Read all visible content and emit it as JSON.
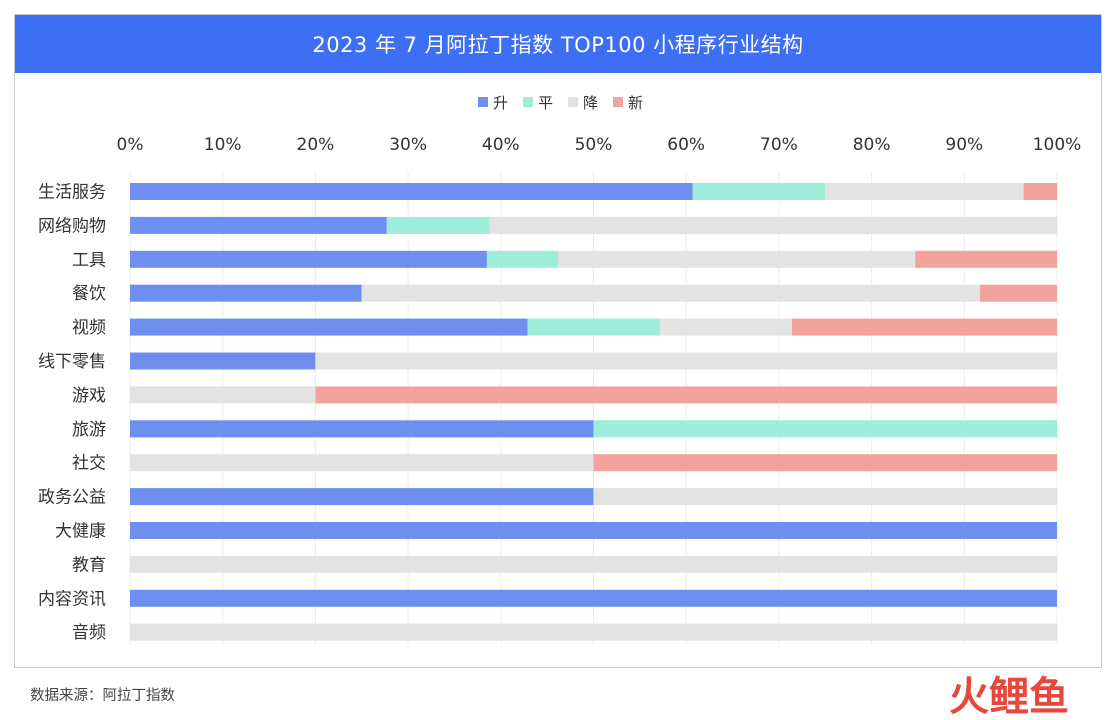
{
  "chart_data": {
    "type": "bar",
    "orientation": "horizontal",
    "stacked": true,
    "title": "2023 年 7 月阿拉丁指数 TOP100 小程序行业结构",
    "xlabel": "",
    "ylabel": "",
    "xlim": [
      0,
      100
    ],
    "x_ticks": [
      "0%",
      "10%",
      "20%",
      "30%",
      "40%",
      "50%",
      "60%",
      "70%",
      "80%",
      "90%",
      "100%"
    ],
    "legend_position": "top-center",
    "grid": true,
    "categories": [
      "生活服务",
      "网络购物",
      "工具",
      "餐饮",
      "视频",
      "线下零售",
      "游戏",
      "旅游",
      "社交",
      "政务公益",
      "大健康",
      "教育",
      "内容资讯",
      "音频"
    ],
    "series": [
      {
        "name": "升",
        "color": "#6e8ff0",
        "values": [
          60.7,
          27.7,
          38.5,
          25.0,
          42.9,
          20.0,
          0,
          50.0,
          0,
          50.0,
          100,
          0,
          100,
          0
        ]
      },
      {
        "name": "平",
        "color": "#9eedd9",
        "values": [
          14.3,
          11.1,
          7.7,
          0,
          14.3,
          0,
          0,
          50.0,
          0,
          0,
          0,
          0,
          0,
          0
        ]
      },
      {
        "name": "降",
        "color": "#e3e3e3",
        "values": [
          21.4,
          61.2,
          38.5,
          66.7,
          14.2,
          80.0,
          20.0,
          0,
          50.0,
          50.0,
          0,
          100,
          0,
          100
        ]
      },
      {
        "name": "新",
        "color": "#f2a39b",
        "values": [
          3.6,
          0,
          15.3,
          8.3,
          28.6,
          0,
          80.0,
          0,
          50.0,
          0,
          0,
          0,
          0,
          0
        ]
      }
    ]
  },
  "source_text": "数据来源：阿拉丁指数",
  "logo_text": "火鲤鱼"
}
